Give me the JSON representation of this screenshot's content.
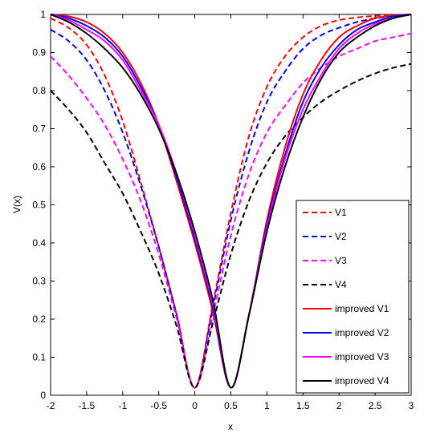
{
  "chart_data": {
    "type": "line",
    "title": "",
    "xlabel": "x",
    "ylabel": "V(x)",
    "xlim": [
      -2,
      3
    ],
    "ylim": [
      0,
      1
    ],
    "xticks": [
      -2,
      -1.5,
      -1,
      -0.5,
      0,
      0.5,
      1,
      1.5,
      2,
      2.5,
      3
    ],
    "yticks": [
      0,
      0.1,
      0.2,
      0.3,
      0.4,
      0.5,
      0.6,
      0.7,
      0.8,
      0.9,
      1
    ],
    "xtick_labels": [
      "-2",
      "-1.5",
      "-1",
      "-0.5",
      "0",
      "0.5",
      "1",
      "1.5",
      "2",
      "2.5",
      "3"
    ],
    "ytick_labels": [
      "0",
      "0.1",
      "0.2",
      "0.3",
      "0.4",
      "0.5",
      "0.6",
      "0.7",
      "0.8",
      "0.9",
      "1"
    ],
    "grid": false,
    "legend_position": "bottom-right",
    "series": [
      {
        "name": "V1",
        "color": "#ff0000",
        "style": "dashed",
        "x": [
          -2,
          -1.75,
          -1.5,
          -1.25,
          -1,
          -0.75,
          -0.5,
          -0.25,
          0,
          0.25,
          0.5,
          0.75,
          1,
          1.25,
          1.5,
          1.75,
          2,
          2.25,
          2.5,
          2.75,
          3
        ],
        "y": [
          0.99,
          0.965,
          0.92,
          0.84,
          0.72,
          0.56,
          0.39,
          0.21,
          0.02,
          0.24,
          0.48,
          0.68,
          0.81,
          0.89,
          0.94,
          0.97,
          0.985,
          0.992,
          0.996,
          0.998,
          1.0
        ]
      },
      {
        "name": "V2",
        "color": "#0000ff",
        "style": "dashed",
        "x": [
          -2,
          -1.75,
          -1.5,
          -1.25,
          -1,
          -0.75,
          -0.5,
          -0.25,
          0,
          0.25,
          0.5,
          0.75,
          1,
          1.25,
          1.5,
          1.75,
          2,
          2.25,
          2.5,
          2.75,
          3
        ],
        "y": [
          0.96,
          0.93,
          0.88,
          0.8,
          0.69,
          0.55,
          0.39,
          0.21,
          0.02,
          0.23,
          0.46,
          0.64,
          0.77,
          0.85,
          0.91,
          0.945,
          0.965,
          0.98,
          0.99,
          0.996,
          1.0
        ]
      },
      {
        "name": "V3",
        "color": "#ff00ff",
        "style": "dashed",
        "x": [
          -2,
          -1.75,
          -1.5,
          -1.25,
          -1,
          -0.75,
          -0.5,
          -0.25,
          0,
          0.25,
          0.5,
          0.75,
          1,
          1.25,
          1.5,
          1.75,
          2,
          2.25,
          2.5,
          2.75,
          3
        ],
        "y": [
          0.89,
          0.84,
          0.78,
          0.71,
          0.62,
          0.51,
          0.37,
          0.2,
          0.02,
          0.21,
          0.42,
          0.58,
          0.69,
          0.76,
          0.82,
          0.86,
          0.89,
          0.91,
          0.93,
          0.94,
          0.95
        ]
      },
      {
        "name": "V4",
        "color": "#000000",
        "style": "dashed",
        "x": [
          -2,
          -1.75,
          -1.5,
          -1.25,
          -1,
          -0.75,
          -0.5,
          -0.25,
          0,
          0.25,
          0.5,
          0.75,
          1,
          1.25,
          1.5,
          1.75,
          2,
          2.25,
          2.5,
          2.75,
          3
        ],
        "y": [
          0.8,
          0.75,
          0.69,
          0.61,
          0.53,
          0.43,
          0.32,
          0.18,
          0.02,
          0.19,
          0.37,
          0.51,
          0.61,
          0.68,
          0.73,
          0.77,
          0.8,
          0.825,
          0.845,
          0.86,
          0.87
        ]
      },
      {
        "name": "improved V1",
        "color": "#ff0000",
        "style": "solid",
        "x": [
          -2,
          -1.75,
          -1.5,
          -1.25,
          -1,
          -0.75,
          -0.5,
          -0.25,
          0,
          0.25,
          0.5,
          0.75,
          1,
          1.25,
          1.5,
          1.75,
          2,
          2.25,
          2.5,
          2.75,
          3
        ],
        "y": [
          1.0,
          0.995,
          0.98,
          0.95,
          0.9,
          0.82,
          0.71,
          0.56,
          0.4,
          0.22,
          0.02,
          0.21,
          0.46,
          0.65,
          0.79,
          0.88,
          0.94,
          0.97,
          0.99,
          0.997,
          1.0
        ]
      },
      {
        "name": "improved V2",
        "color": "#0000ff",
        "style": "solid",
        "x": [
          -2,
          -1.75,
          -1.5,
          -1.25,
          -1,
          -0.75,
          -0.5,
          -0.25,
          0,
          0.25,
          0.5,
          0.75,
          1,
          1.25,
          1.5,
          1.75,
          2,
          2.25,
          2.5,
          2.75,
          3
        ],
        "y": [
          1.0,
          0.99,
          0.97,
          0.94,
          0.89,
          0.81,
          0.71,
          0.57,
          0.41,
          0.23,
          0.02,
          0.21,
          0.45,
          0.63,
          0.77,
          0.86,
          0.92,
          0.96,
          0.98,
          0.995,
          1.0
        ]
      },
      {
        "name": "improved V3",
        "color": "#ff00ff",
        "style": "solid",
        "x": [
          -2,
          -1.75,
          -1.5,
          -1.25,
          -1,
          -0.75,
          -0.5,
          -0.25,
          0,
          0.25,
          0.5,
          0.75,
          1,
          1.25,
          1.5,
          1.75,
          2,
          2.25,
          2.5,
          2.75,
          3
        ],
        "y": [
          1.0,
          0.985,
          0.96,
          0.93,
          0.88,
          0.8,
          0.71,
          0.58,
          0.42,
          0.24,
          0.02,
          0.21,
          0.44,
          0.62,
          0.75,
          0.84,
          0.91,
          0.95,
          0.975,
          0.99,
          1.0
        ]
      },
      {
        "name": "improved V4",
        "color": "#000000",
        "style": "solid",
        "x": [
          -2,
          -1.75,
          -1.5,
          -1.25,
          -1,
          -0.75,
          -0.5,
          -0.25,
          0,
          0.25,
          0.5,
          0.75,
          1,
          1.25,
          1.5,
          1.75,
          2,
          2.25,
          2.5,
          2.75,
          3
        ],
        "y": [
          1.0,
          0.98,
          0.95,
          0.91,
          0.86,
          0.79,
          0.7,
          0.58,
          0.43,
          0.25,
          0.02,
          0.21,
          0.43,
          0.6,
          0.73,
          0.83,
          0.9,
          0.94,
          0.97,
          0.99,
          1.0
        ]
      }
    ]
  }
}
